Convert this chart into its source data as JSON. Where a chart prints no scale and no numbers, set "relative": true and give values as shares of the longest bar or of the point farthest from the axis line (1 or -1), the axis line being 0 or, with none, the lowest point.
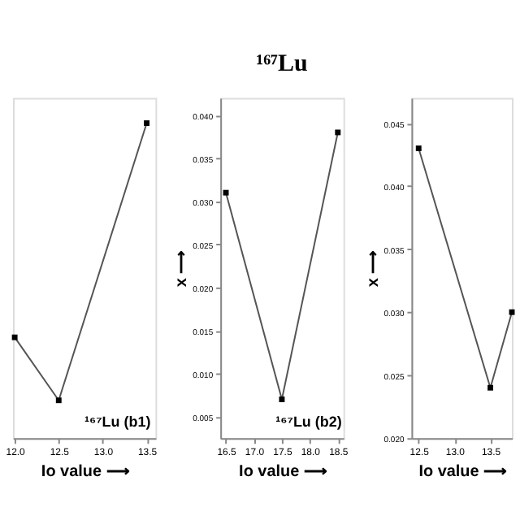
{
  "chart_data": [
    {
      "type": "line",
      "xlabel": "Io value ⟶",
      "relative": true,
      "x": [
        12.0,
        12.5,
        13.5
      ],
      "values": [
        0.32,
        0.12,
        1
      ],
      "color": "#555555",
      "xlim": [
        11.98,
        13.6
      ],
      "xticks": [
        {
          "value": 12.0,
          "label": "12.0"
        },
        {
          "value": 12.5,
          "label": "12.5"
        },
        {
          "value": 13.0,
          "label": "13.0"
        },
        {
          "value": 13.5,
          "label": "13.5"
        }
      ],
      "marker": "square",
      "annotations": [
        "¹⁶⁷Lu (b1)"
      ],
      "tick_labels": "x"
    },
    {
      "type": "line",
      "title": "¹⁶⁷Lu",
      "xlabel": "Io value ⟶",
      "ylabel": "x ⟶",
      "x": [
        16.5,
        17.5,
        18.5
      ],
      "values": [
        0.031,
        0.007,
        0.038
      ],
      "color": "#555555",
      "xlim": [
        16.4,
        18.6
      ],
      "ylim": [
        0.0025,
        0.042
      ],
      "xticks": [
        {
          "value": 16.5,
          "label": "16.5"
        },
        {
          "value": 17.0,
          "label": "17.0"
        },
        {
          "value": 17.5,
          "label": "17.5"
        },
        {
          "value": 18.0,
          "label": "18.0"
        },
        {
          "value": 18.5,
          "label": "18.5"
        }
      ],
      "yticks": [
        {
          "value": 0.005,
          "label": "0.005"
        },
        {
          "value": 0.01,
          "label": "0.010"
        },
        {
          "value": 0.015,
          "label": "0.015"
        },
        {
          "value": 0.02,
          "label": "0.020"
        },
        {
          "value": 0.025,
          "label": "0.025"
        },
        {
          "value": 0.03,
          "label": "0.030"
        },
        {
          "value": 0.035,
          "label": "0.035"
        },
        {
          "value": 0.04,
          "label": "0.040"
        }
      ],
      "marker": "square",
      "annotations": [
        "¹⁶⁷Lu (b2)"
      ]
    },
    {
      "type": "line",
      "xlabel": "Io value ⟶",
      "ylabel": "x ⟶",
      "x": [
        12.5,
        13.5,
        13.8
      ],
      "values": [
        0.043,
        0.024,
        0.03
      ],
      "color": "#555555",
      "xlim": [
        12.4,
        13.8
      ],
      "ylim": [
        0.02,
        0.047
      ],
      "xticks": [
        {
          "value": 12.5,
          "label": "12.5"
        },
        {
          "value": 13.0,
          "label": "13.0"
        },
        {
          "value": 13.5,
          "label": "13.5"
        }
      ],
      "yticks": [
        {
          "value": 0.02,
          "label": "0.020"
        },
        0.025,
        {
          "value": 0.03,
          "label": "0.030"
        },
        0.035,
        {
          "value": 0.04,
          "label": "0.040"
        },
        0.045
      ],
      "marker": "square"
    }
  ]
}
